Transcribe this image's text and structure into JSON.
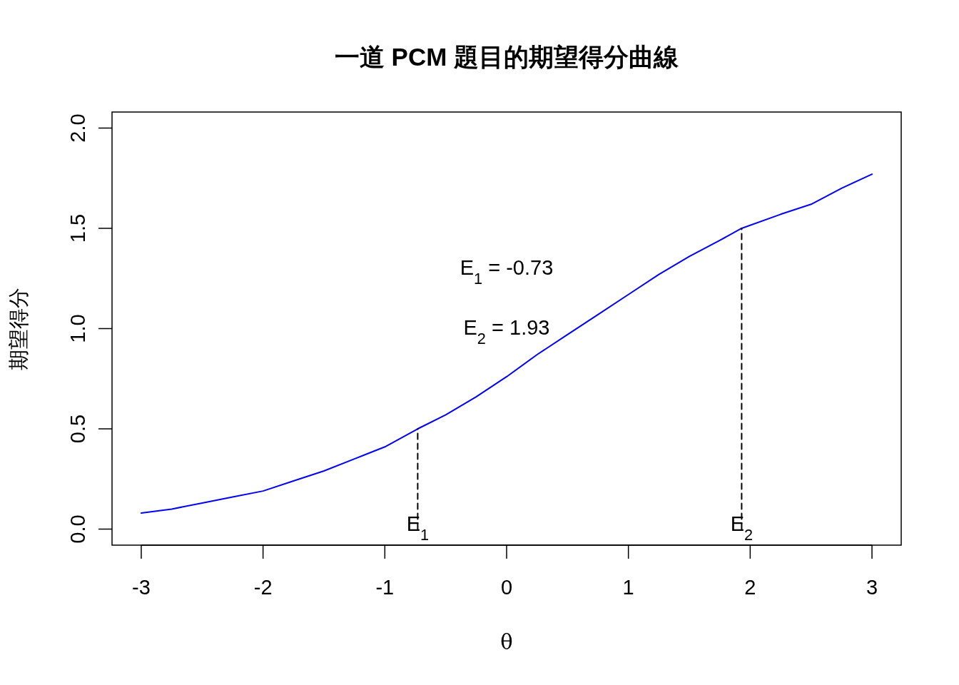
{
  "chart_data": {
    "type": "line",
    "title": "一道 PCM 題目的期望得分曲線",
    "xlabel": "θ",
    "ylabel": "期望得分",
    "xlim": [
      -3.24,
      3.24
    ],
    "ylim": [
      -0.08,
      2.08
    ],
    "xticks": [
      -3,
      -2,
      -1,
      0,
      1,
      2,
      3
    ],
    "yticks": [
      {
        "value": 0,
        "label": "0.0"
      },
      0.5,
      {
        "value": 1,
        "label": "1.0"
      },
      1.5,
      {
        "value": 2,
        "label": "2.0"
      }
    ],
    "grid": false,
    "series": [
      {
        "color": "#0000ff",
        "line_style": "solid",
        "x": [
          -3,
          -2.75,
          -2.5,
          -2.25,
          -2,
          -1.75,
          -1.5,
          -1.25,
          -1,
          -0.73,
          -0.5,
          -0.25,
          0,
          0.25,
          0.5,
          0.75,
          1,
          1.25,
          1.5,
          1.75,
          1.93,
          2.25,
          2.5,
          2.75,
          3
        ],
        "values": [
          0.08,
          0.1,
          0.13,
          0.16,
          0.19,
          0.24,
          0.29,
          0.35,
          0.41,
          0.5,
          0.57,
          0.66,
          0.76,
          0.87,
          0.97,
          1.07,
          1.17,
          1.27,
          1.36,
          1.44,
          1.5,
          1.57,
          1.62,
          1.7,
          1.77
        ]
      },
      {
        "color": "#000000",
        "line_style": "dashed",
        "x": [
          -0.73,
          -0.73
        ],
        "values": [
          0,
          0.5
        ]
      },
      {
        "color": "#000000",
        "line_style": "dashed",
        "x": [
          1.93,
          1.93
        ],
        "values": [
          0,
          1.5
        ]
      }
    ],
    "annotations": [
      "E$_{1}$ = -0.73",
      "E$_{2}$ = 1.93",
      {
        "text": "E$_{1}$",
        "x": -0.73,
        "y": 0
      },
      {
        "text": "E$_{2}$",
        "x": 1.93,
        "y": 0
      }
    ]
  }
}
